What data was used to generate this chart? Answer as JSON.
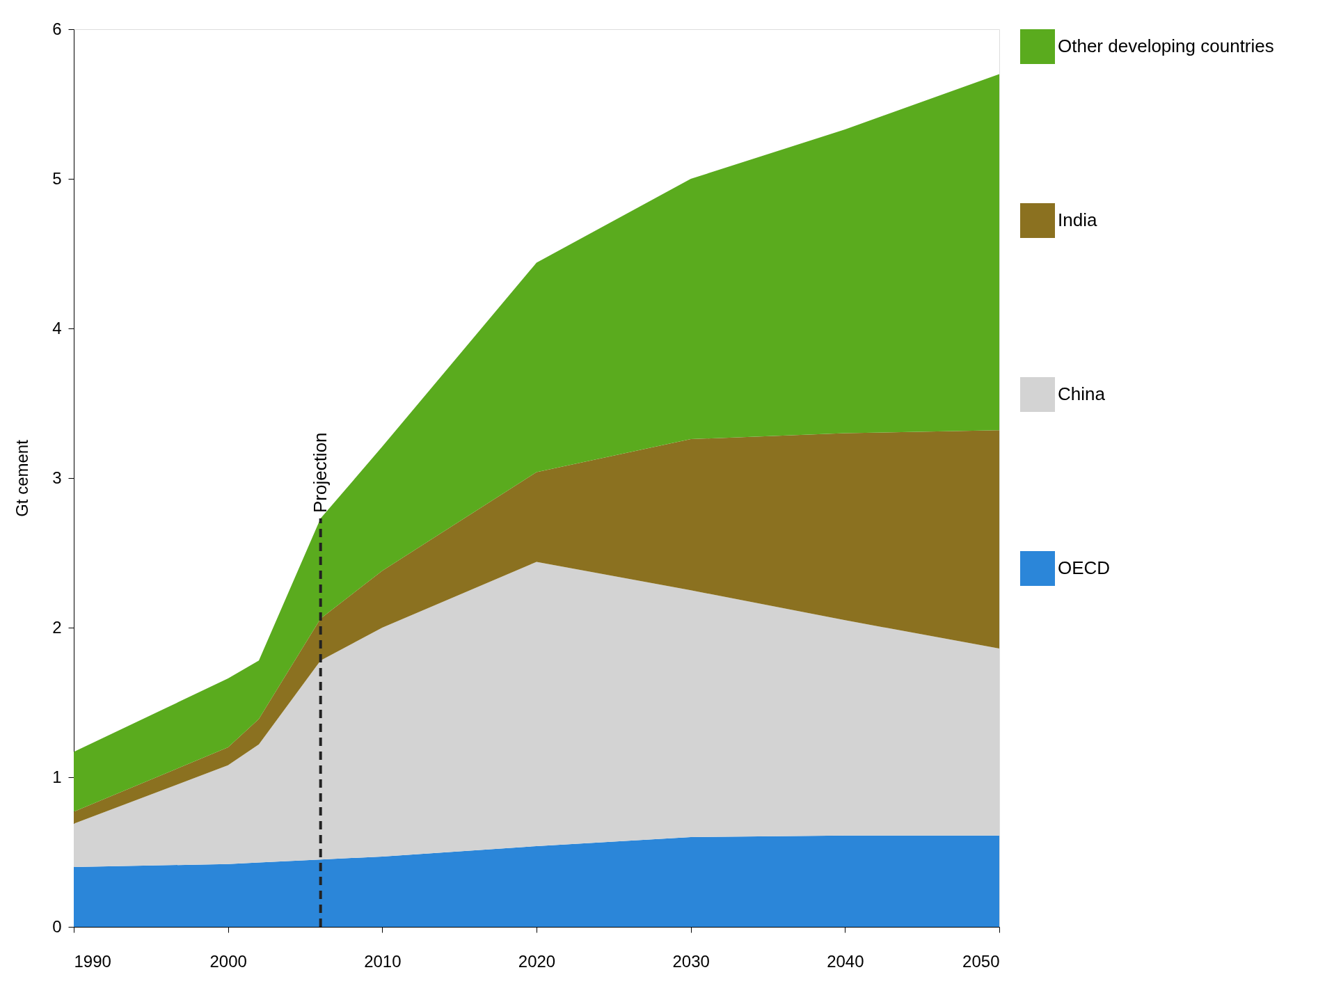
{
  "chart_data": {
    "type": "area",
    "stacked": true,
    "ylabel": "Gt cement",
    "x": [
      1990,
      2000,
      2002,
      2006,
      2010,
      2020,
      2030,
      2040,
      2050
    ],
    "series": [
      {
        "name": "OECD",
        "color": "#2b86d9",
        "values": [
          0.4,
          0.42,
          0.43,
          0.45,
          0.47,
          0.54,
          0.6,
          0.61,
          0.61
        ]
      },
      {
        "name": "China",
        "color": "#d3d3d3",
        "values": [
          0.29,
          0.66,
          0.79,
          1.33,
          1.53,
          1.9,
          1.65,
          1.44,
          1.25
        ]
      },
      {
        "name": "India",
        "color": "#8b7120",
        "values": [
          0.08,
          0.12,
          0.17,
          0.28,
          0.38,
          0.6,
          1.01,
          1.25,
          1.46
        ]
      },
      {
        "name": "Other developing countries",
        "color": "#5aab1e",
        "values": [
          0.4,
          0.46,
          0.39,
          0.67,
          0.83,
          1.4,
          1.74,
          2.03,
          2.38
        ]
      }
    ],
    "xlim": [
      1990,
      2050
    ],
    "xticks": [
      1990,
      2000,
      2010,
      2020,
      2030,
      2040,
      2050
    ],
    "ylim": [
      0,
      6
    ],
    "yticks": [
      0,
      1,
      2,
      3,
      4,
      5,
      6
    ],
    "ref_lines": [
      {
        "axis": "x",
        "value": 2006,
        "label": "Projection",
        "color": "#222222",
        "line_style": "dashed"
      }
    ],
    "grid": false,
    "legend": "right"
  }
}
